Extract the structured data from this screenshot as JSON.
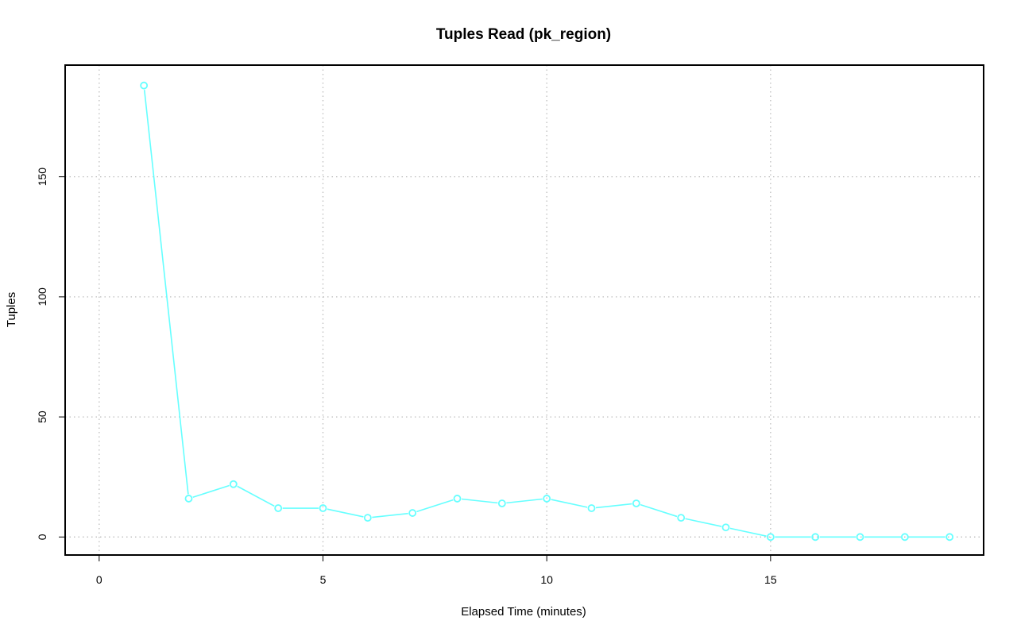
{
  "chart_data": {
    "type": "line",
    "title": "Tuples Read (pk_region)",
    "xlabel": "Elapsed Time (minutes)",
    "ylabel": "Tuples",
    "x_ticks": [
      0,
      5,
      10,
      15
    ],
    "y_ticks": [
      0,
      50,
      100,
      150
    ],
    "xlim": [
      -0.76,
      19.76
    ],
    "ylim": [
      -7.5,
      196.5
    ],
    "grid": true,
    "legend": "none",
    "series": [
      {
        "color": "#66ffff",
        "marker": "open-circle",
        "x": [
          1,
          2,
          3,
          4,
          5,
          6,
          7,
          8,
          9,
          10,
          11,
          12,
          13,
          14,
          15,
          16,
          17,
          18,
          19
        ],
        "y": [
          188,
          16,
          22,
          12,
          12,
          8,
          10,
          16,
          14,
          16,
          12,
          14,
          8,
          4,
          0,
          0,
          0,
          0,
          0
        ]
      }
    ]
  }
}
